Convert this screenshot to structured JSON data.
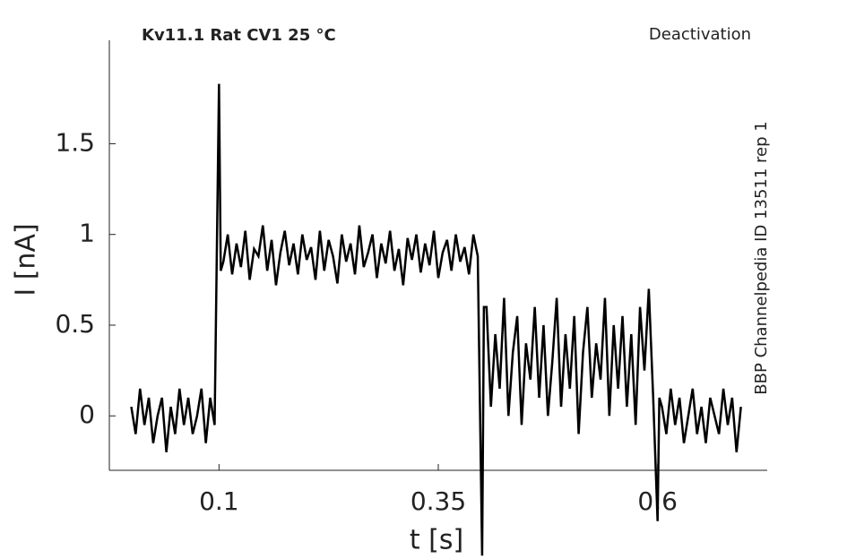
{
  "chart_data": {
    "type": "line",
    "title": "Kv11.1  Rat  CV1  25 °C",
    "subtitle": "Deactivation",
    "annotation": "BBP Channelpedia ID 13511 rep 1",
    "xlabel": "t [s]",
    "ylabel": "I [nA]",
    "color": "#000000",
    "xlim": [
      -0.025,
      0.725
    ],
    "xticks": [
      0.1,
      0.35,
      0.6
    ],
    "ylim": [
      -0.3,
      2.07
    ],
    "yticks": [
      0,
      0.5,
      1,
      1.5
    ],
    "x": [
      0,
      0.005,
      0.01,
      0.015,
      0.02,
      0.025,
      0.03,
      0.035,
      0.04,
      0.045,
      0.05,
      0.055,
      0.06,
      0.065,
      0.07,
      0.075,
      0.08,
      0.085,
      0.09,
      0.095,
      0.1,
      0.102,
      0.105,
      0.11,
      0.115,
      0.12,
      0.125,
      0.13,
      0.135,
      0.14,
      0.145,
      0.15,
      0.155,
      0.16,
      0.165,
      0.17,
      0.175,
      0.18,
      0.185,
      0.19,
      0.195,
      0.2,
      0.205,
      0.21,
      0.215,
      0.22,
      0.225,
      0.23,
      0.235,
      0.24,
      0.245,
      0.25,
      0.255,
      0.26,
      0.265,
      0.27,
      0.275,
      0.28,
      0.285,
      0.29,
      0.295,
      0.3,
      0.305,
      0.31,
      0.315,
      0.32,
      0.325,
      0.33,
      0.335,
      0.34,
      0.345,
      0.35,
      0.355,
      0.36,
      0.365,
      0.37,
      0.375,
      0.38,
      0.385,
      0.39,
      0.395,
      0.4,
      0.402,
      0.405,
      0.41,
      0.415,
      0.42,
      0.425,
      0.43,
      0.435,
      0.44,
      0.445,
      0.45,
      0.455,
      0.46,
      0.465,
      0.47,
      0.475,
      0.48,
      0.485,
      0.49,
      0.495,
      0.5,
      0.505,
      0.51,
      0.515,
      0.52,
      0.525,
      0.53,
      0.535,
      0.54,
      0.545,
      0.55,
      0.555,
      0.56,
      0.565,
      0.57,
      0.575,
      0.58,
      0.585,
      0.59,
      0.595,
      0.6,
      0.602,
      0.605,
      0.61,
      0.615,
      0.62,
      0.625,
      0.63,
      0.635,
      0.64,
      0.645,
      0.65,
      0.655,
      0.66,
      0.665,
      0.67,
      0.675,
      0.68,
      0.685,
      0.69,
      0.695
    ],
    "values": [
      0.05,
      -0.1,
      0.15,
      -0.05,
      0.1,
      -0.15,
      0.0,
      0.1,
      -0.2,
      0.05,
      -0.1,
      0.15,
      -0.05,
      0.1,
      -0.1,
      0.0,
      0.15,
      -0.15,
      0.1,
      -0.05,
      1.83,
      0.8,
      0.85,
      1.0,
      0.78,
      0.95,
      0.82,
      1.02,
      0.75,
      0.92,
      0.88,
      1.05,
      0.8,
      0.97,
      0.72,
      0.9,
      1.02,
      0.83,
      0.95,
      0.78,
      1.0,
      0.86,
      0.93,
      0.75,
      1.02,
      0.8,
      0.97,
      0.88,
      0.73,
      1.0,
      0.85,
      0.95,
      0.78,
      1.05,
      0.82,
      0.9,
      1.0,
      0.76,
      0.95,
      0.84,
      1.02,
      0.8,
      0.92,
      0.72,
      0.98,
      0.86,
      1.0,
      0.79,
      0.95,
      0.83,
      1.02,
      0.76,
      0.9,
      0.97,
      0.8,
      1.0,
      0.85,
      0.93,
      0.78,
      1.0,
      0.88,
      -0.77,
      0.6,
      0.6,
      0.05,
      0.45,
      0.15,
      0.65,
      0.0,
      0.35,
      0.55,
      -0.05,
      0.4,
      0.2,
      0.6,
      0.1,
      0.5,
      0.0,
      0.3,
      0.65,
      0.05,
      0.45,
      0.15,
      0.55,
      -0.1,
      0.35,
      0.6,
      0.1,
      0.4,
      0.2,
      0.65,
      0.0,
      0.5,
      0.15,
      0.55,
      0.05,
      0.45,
      -0.05,
      0.6,
      0.25,
      0.7,
      0.1,
      -0.58,
      0.1,
      0.05,
      -0.1,
      0.15,
      -0.05,
      0.1,
      -0.15,
      0.0,
      0.15,
      -0.1,
      0.05,
      -0.15,
      0.1,
      0.0,
      -0.1,
      0.15,
      -0.05,
      0.1,
      -0.2,
      0.05
    ]
  }
}
